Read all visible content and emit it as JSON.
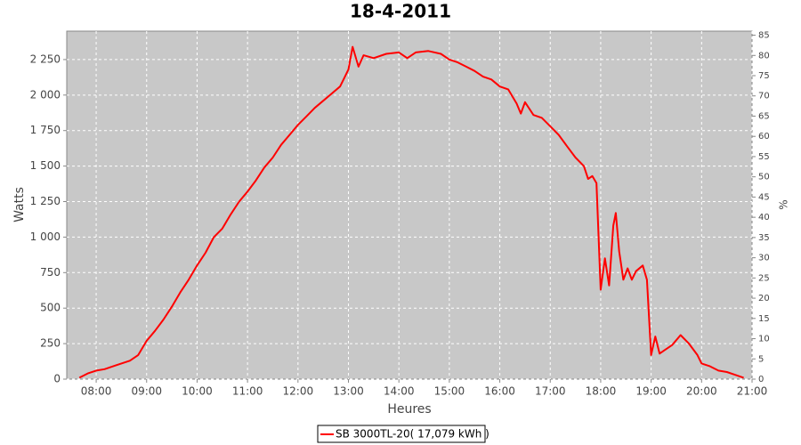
{
  "chart_data": {
    "type": "line",
    "title": "18-4-2011",
    "x_label": "Heures",
    "y_label": "Watts",
    "y2_label": "%",
    "x": [
      "07:40",
      "07:50",
      "08:00",
      "08:10",
      "08:20",
      "08:30",
      "08:40",
      "08:50",
      "09:00",
      "09:10",
      "09:20",
      "09:30",
      "09:40",
      "09:50",
      "10:00",
      "10:10",
      "10:20",
      "10:30",
      "10:40",
      "10:50",
      "11:00",
      "11:10",
      "11:20",
      "11:30",
      "11:40",
      "11:50",
      "12:00",
      "12:10",
      "12:20",
      "12:30",
      "12:40",
      "12:50",
      "12:55",
      "13:00",
      "13:05",
      "13:12",
      "13:18",
      "13:30",
      "13:45",
      "14:00",
      "14:10",
      "14:20",
      "14:35",
      "14:50",
      "15:00",
      "15:10",
      "15:20",
      "15:30",
      "15:40",
      "15:50",
      "16:00",
      "16:10",
      "16:20",
      "16:25",
      "16:30",
      "16:40",
      "16:50",
      "17:00",
      "17:10",
      "17:20",
      "17:30",
      "17:40",
      "17:45",
      "17:50",
      "17:55",
      "18:00",
      "18:05",
      "18:10",
      "18:15",
      "18:18",
      "18:22",
      "18:27",
      "18:32",
      "18:37",
      "18:42",
      "18:50",
      "18:55",
      "19:00",
      "19:05",
      "19:10",
      "19:15",
      "19:25",
      "19:35",
      "19:45",
      "19:55",
      "20:00",
      "20:10",
      "20:20",
      "20:30",
      "20:40",
      "20:45",
      "20:50"
    ],
    "series": [
      {
        "name": "SB 3000TL-20( 17,079 kWh )",
        "color": "#ff0000",
        "values": [
          10,
          40,
          60,
          70,
          90,
          110,
          130,
          170,
          270,
          340,
          420,
          510,
          610,
          700,
          800,
          890,
          1000,
          1060,
          1160,
          1250,
          1320,
          1400,
          1490,
          1560,
          1650,
          1720,
          1790,
          1850,
          1910,
          1960,
          2010,
          2060,
          2120,
          2180,
          2340,
          2200,
          2280,
          2260,
          2290,
          2300,
          2260,
          2300,
          2310,
          2290,
          2250,
          2230,
          2200,
          2170,
          2130,
          2110,
          2060,
          2040,
          1940,
          1870,
          1950,
          1860,
          1840,
          1780,
          1720,
          1640,
          1560,
          1500,
          1410,
          1430,
          1380,
          630,
          850,
          660,
          1080,
          1170,
          900,
          700,
          780,
          700,
          760,
          800,
          700,
          170,
          300,
          180,
          200,
          240,
          310,
          250,
          170,
          110,
          90,
          60,
          50,
          30,
          20,
          10
        ]
      }
    ],
    "xlim": [
      "07:25",
      "21:00"
    ],
    "xticks": [
      "08:00",
      "09:00",
      "10:00",
      "11:00",
      "12:00",
      "13:00",
      "14:00",
      "15:00",
      "16:00",
      "17:00",
      "18:00",
      "19:00",
      "20:00",
      "21:00"
    ],
    "ylim": [
      0,
      2450
    ],
    "yticks": [
      0,
      250,
      500,
      750,
      {
        "value": 1000,
        "label": "1 000"
      },
      {
        "value": 1250,
        "label": "1 250"
      },
      {
        "value": 1500,
        "label": "1 500"
      },
      {
        "value": 1750,
        "label": "1 750"
      },
      {
        "value": 2000,
        "label": "2 000"
      },
      {
        "value": 2250,
        "label": "2 250"
      }
    ],
    "y2lim": [
      0,
      86
    ],
    "y2ticks": [
      0,
      5,
      10,
      15,
      20,
      25,
      30,
      35,
      40,
      45,
      50,
      55,
      60,
      65,
      70,
      75,
      80,
      85
    ],
    "grid": true,
    "background": "#c8c8c8"
  }
}
